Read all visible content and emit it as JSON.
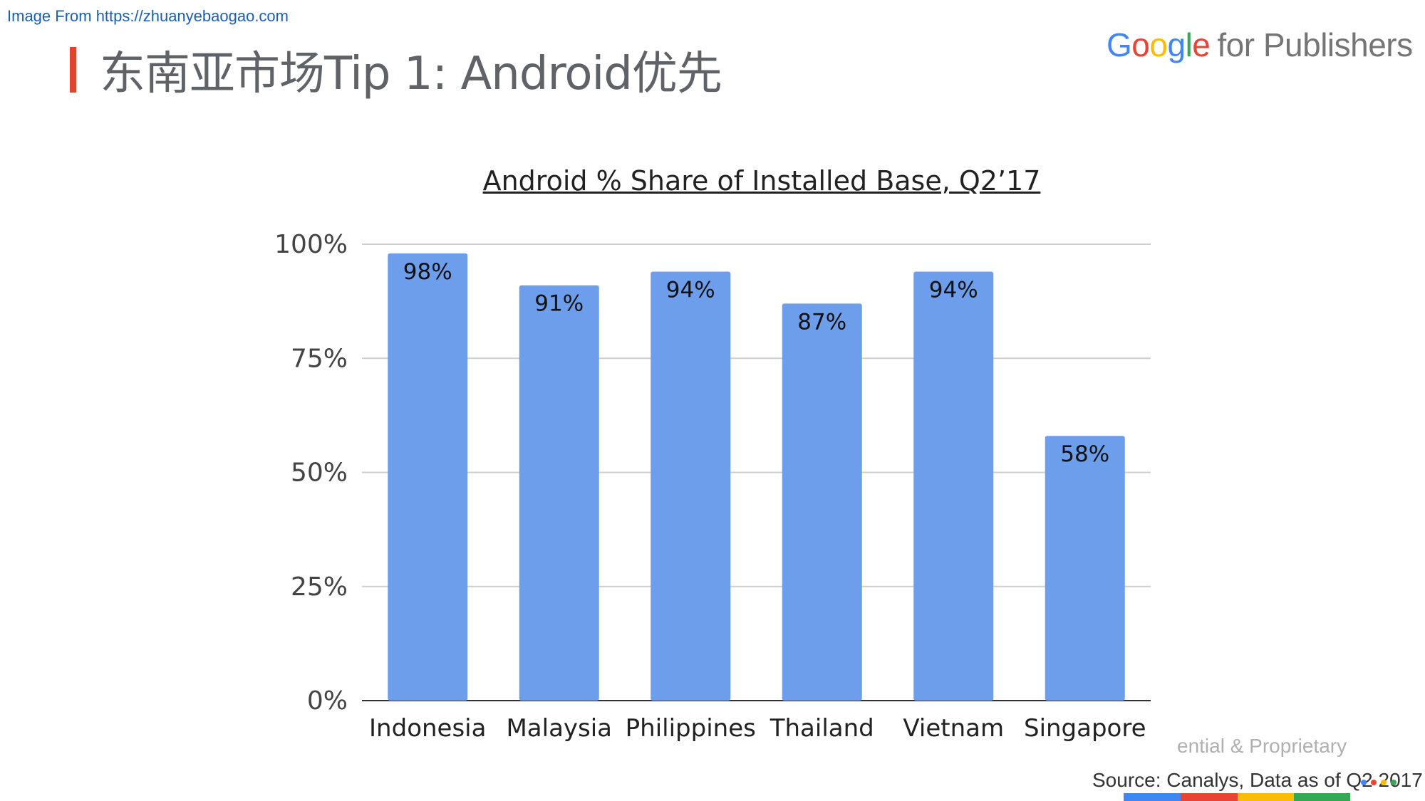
{
  "watermark": "Image From https://zhuanyebaogao.com",
  "page_title": "东南亚市场Tip 1: Android优先",
  "logo": {
    "g1": "G",
    "o1": "o",
    "o2": "o",
    "g2": "g",
    "l": "l",
    "e": "e",
    "publisher_text": "for Publishers"
  },
  "footer": {
    "confidential": "ential & Proprietary",
    "source": "Source: Canalys, Data as of Q2 2017"
  },
  "colors": {
    "bar": "#6d9eeb",
    "title_accent": "#e0442f",
    "google_blue": "#4285f4",
    "google_red": "#ea4335",
    "google_yellow": "#fbbc05",
    "google_green": "#34a853"
  },
  "chart_data": {
    "type": "bar",
    "title": "Android % Share of Installed Base, Q2’17",
    "categories": [
      "Indonesia",
      "Malaysia",
      "Philippines",
      "Thailand",
      "Vietnam",
      "Singapore"
    ],
    "values": [
      98,
      91,
      94,
      87,
      94,
      58
    ],
    "data_labels": [
      "98%",
      "91%",
      "94%",
      "87%",
      "94%",
      "58%"
    ],
    "yticks": [
      0,
      25,
      50,
      75,
      100
    ],
    "ytick_labels": [
      "0%",
      "25%",
      "50%",
      "75%",
      "100%"
    ],
    "ylim": [
      0,
      100
    ],
    "xlabel": "",
    "ylabel": "",
    "grid": true,
    "legend": "none"
  }
}
